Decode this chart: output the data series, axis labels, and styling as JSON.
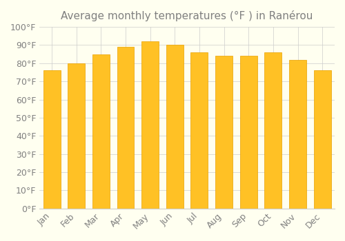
{
  "title": "Average monthly temperatures (°F ) in Ranérou",
  "months": [
    "Jan",
    "Feb",
    "Mar",
    "Apr",
    "May",
    "Jun",
    "Jul",
    "Aug",
    "Sep",
    "Oct",
    "Nov",
    "Dec"
  ],
  "values": [
    76,
    80,
    85,
    89,
    92,
    90,
    86,
    84,
    84,
    86,
    82,
    76
  ],
  "bar_color": "#FFC125",
  "bar_edge_color": "#E8A000",
  "background_color": "#FFFFF0",
  "grid_color": "#CCCCCC",
  "ylim": [
    0,
    100
  ],
  "yticks": [
    0,
    10,
    20,
    30,
    40,
    50,
    60,
    70,
    80,
    90,
    100
  ],
  "ylabel_suffix": "°F",
  "title_fontsize": 11,
  "tick_fontsize": 9
}
